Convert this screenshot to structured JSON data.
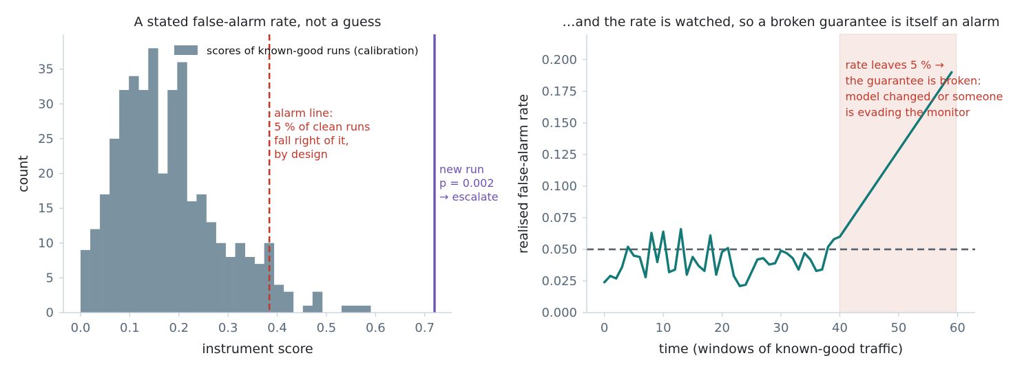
{
  "chart_data": [
    {
      "type": "bar",
      "title": "A stated false-alarm rate, not a guess",
      "xlabel": "instrument score",
      "ylabel": "count",
      "xlim": [
        -0.035,
        0.755
      ],
      "ylim": [
        0,
        40
      ],
      "xticks": [
        "0.0",
        "0.1",
        "0.2",
        "0.3",
        "0.4",
        "0.5",
        "0.6",
        "0.7"
      ],
      "xtick_values": [
        0.0,
        0.1,
        0.2,
        0.3,
        0.4,
        0.5,
        0.6,
        0.7
      ],
      "yticks": [
        "0",
        "5",
        "10",
        "15",
        "20",
        "25",
        "30",
        "35"
      ],
      "ytick_values": [
        0,
        5,
        10,
        15,
        20,
        25,
        30,
        35
      ],
      "bin_start": 0.0,
      "bin_width": 0.01966,
      "values": [
        9,
        12,
        17,
        25,
        32,
        34,
        32,
        38,
        20,
        32,
        36,
        16,
        17,
        13,
        10,
        8,
        10,
        8,
        7,
        10,
        4,
        3,
        0,
        1,
        3,
        0,
        0,
        1,
        1,
        1
      ],
      "bar_color": "#7b93a1",
      "legend": {
        "label": "scores of known-good runs (calibration)",
        "placement": "top-right"
      },
      "alarm_line": {
        "x": 0.384,
        "color": "#c0392b",
        "label_lines": [
          "alarm line:",
          "5 % of clean runs",
          "fall right of it,",
          "by design"
        ]
      },
      "new_run": {
        "x": 0.72,
        "color": "#6f52b5",
        "label_lines": [
          "new run",
          "p = 0.002",
          "→ escalate"
        ]
      }
    },
    {
      "type": "line",
      "title": "…and the rate is watched, so a broken guarantee is itself an alarm",
      "xlabel": "time (windows of known-good traffic)",
      "ylabel": "realised false-alarm rate",
      "xlim": [
        -3,
        63
      ],
      "ylim": [
        0,
        0.22
      ],
      "xticks": [
        "0",
        "10",
        "20",
        "30",
        "40",
        "50",
        "60"
      ],
      "xtick_values": [
        0,
        10,
        20,
        30,
        40,
        50,
        60
      ],
      "yticks": [
        "0.000",
        "0.025",
        "0.050",
        "0.075",
        "0.100",
        "0.125",
        "0.150",
        "0.175",
        "0.200"
      ],
      "ytick_values": [
        0,
        0.025,
        0.05,
        0.075,
        0.1,
        0.125,
        0.15,
        0.175,
        0.2
      ],
      "line_color": "#147a78",
      "x": [
        0,
        1,
        2,
        3,
        4,
        5,
        6,
        7,
        8,
        9,
        10,
        11,
        12,
        13,
        14,
        15,
        16,
        17,
        18,
        19,
        20,
        21,
        22,
        23,
        24,
        25,
        26,
        27,
        28,
        29,
        30,
        31,
        32,
        33,
        34,
        35,
        36,
        37,
        38,
        39,
        40,
        59
      ],
      "values": [
        0.024,
        0.029,
        0.027,
        0.036,
        0.052,
        0.045,
        0.044,
        0.028,
        0.063,
        0.04,
        0.064,
        0.032,
        0.034,
        0.066,
        0.03,
        0.044,
        0.037,
        0.033,
        0.061,
        0.03,
        0.048,
        0.051,
        0.029,
        0.021,
        0.022,
        0.032,
        0.042,
        0.043,
        0.038,
        0.039,
        0.049,
        0.047,
        0.043,
        0.034,
        0.047,
        0.042,
        0.033,
        0.034,
        0.052,
        0.058,
        0.06,
        0.19
      ],
      "target_rate": {
        "y": 0.05,
        "color": "#59606a"
      },
      "shaded_region": {
        "x0": 40,
        "x1": 59.8,
        "color": "#f8ebe7",
        "label_lines": [
          "rate leaves 5 % →",
          "the guarantee is broken:",
          "model changed, or someone",
          "is evading the monitor"
        ],
        "label_color": "#c0392b"
      }
    }
  ]
}
